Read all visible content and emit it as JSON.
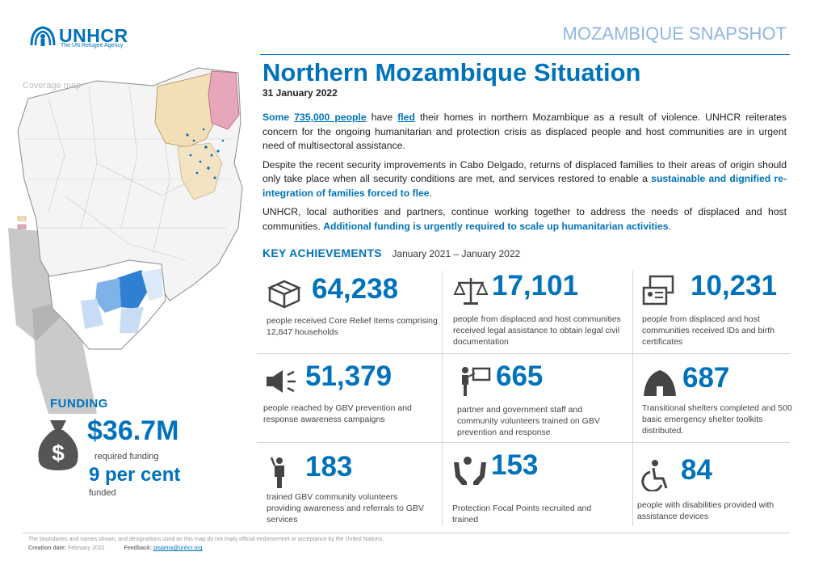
{
  "header": {
    "logo_name": "UNHCR",
    "logo_tagline": "The UN Refugee Agency",
    "snapshot_label": "MOZAMBIQUE SNAPSHOT"
  },
  "map": {
    "label": "Coverage map",
    "legend_items": [
      "",
      ""
    ]
  },
  "main": {
    "title": "Northern Mozambique Situation",
    "date": "31 January 2022",
    "p1": {
      "some": "Some",
      "count": "735,000 people",
      "have": "have",
      "fled": "fled",
      "rest": "their homes in northern Mozambique as a result of violence. UNHCR reiterates concern for the ongoing humanitarian and protection crisis as displaced people and host communities are in urgent need of multisectoral assistance."
    },
    "p2": {
      "text": "Despite the recent security improvements in Cabo Delgado, returns of displaced families to their areas of origin should only take place when all security conditions are met, and services restored to enable a",
      "emphasis": "sustainable and dignified re-integration of families forced to flee",
      "end": "."
    },
    "p3": {
      "text": "UNHCR, local authorities and partners, continue working together to address the needs of displaced and host communities.",
      "emphasis": "Additional funding is urgently required to scale up humanitarian activities",
      "end": "."
    }
  },
  "key_achievements": {
    "title": "KEY ACHIEVEMENTS",
    "range": "January 2021 – January 2022",
    "items": [
      {
        "icon": "boxes-icon",
        "value": "64,238",
        "desc": "people received Core Relief Items comprising 12,847 households"
      },
      {
        "icon": "scales-icon",
        "value": "17,101",
        "desc": "people from displaced and host communities received legal assistance to obtain legal civil documentation"
      },
      {
        "icon": "id-card-icon",
        "value": "10,231",
        "desc": "people from displaced and host communities received IDs and birth certificates"
      },
      {
        "icon": "megaphone-icon",
        "value": "51,379",
        "desc": "people reached by GBV prevention and response awareness campaigns"
      },
      {
        "icon": "trainer-icon",
        "value": "665",
        "desc": "partner and government staff and community volunteers trained on GBV prevention and response"
      },
      {
        "icon": "shelter-icon",
        "value": "687",
        "desc": "Transitional shelters completed and 500 basic emergency shelter toolkits distributed."
      },
      {
        "icon": "volunteer-icon",
        "value": "183",
        "desc": "trained GBV community volunteers providing awareness and referrals to GBV services"
      },
      {
        "icon": "protection-hands-icon",
        "value": "153",
        "desc": "Protection Focal Points recruited and trained"
      },
      {
        "icon": "wheelchair-icon",
        "value": "84",
        "desc": "people with disabilities provided with assistance devices"
      }
    ]
  },
  "funding": {
    "label": "FUNDING",
    "amount": "$36.7M",
    "required": "required funding",
    "percent": "9 per cent",
    "funded": "funded"
  },
  "footer": {
    "disclaimer": "The boundaries and names shown, and designations used on this map do not imply official endorsement or acceptance by the United Nations.",
    "creation_label": "Creation date:",
    "creation_value": "February 2022",
    "feedback_label": "Feedback:",
    "feedback_value": "pisaima@unhcr.org"
  },
  "colors": {
    "accent": "#0072bc",
    "snapshot": "#8fb6e0",
    "icon": "#444444"
  }
}
